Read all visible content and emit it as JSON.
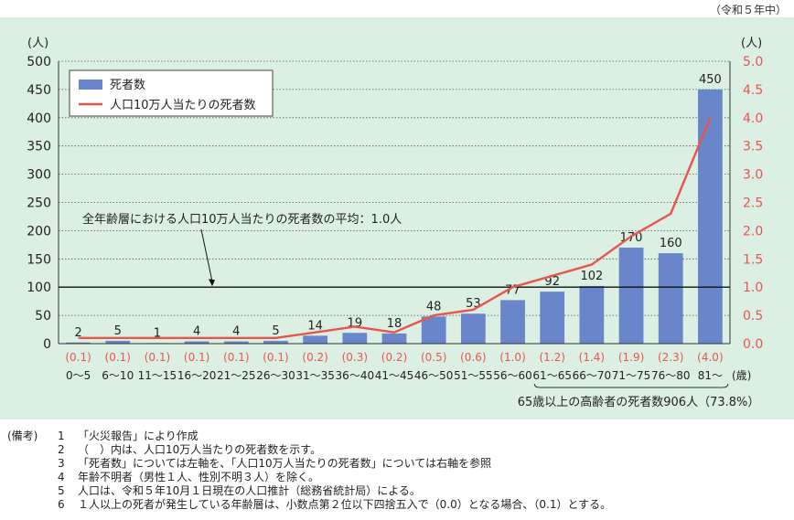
{
  "period_label": "（令和５年中）",
  "chart_data": {
    "type": "bar",
    "categories": [
      "0～5",
      "6～10",
      "11～15",
      "16～20",
      "21～25",
      "26～30",
      "31～35",
      "36～40",
      "41～45",
      "46～50",
      "51～55",
      "56～60",
      "61～65",
      "66～70",
      "71～75",
      "76～80",
      "81～"
    ],
    "x_unit_label": "(歳)",
    "series": [
      {
        "name": "死者数",
        "type": "bar",
        "axis": "left",
        "values": [
          2,
          5,
          1,
          4,
          4,
          5,
          14,
          19,
          18,
          48,
          53,
          77,
          92,
          102,
          170,
          160,
          450
        ],
        "color": "#6a86cb"
      },
      {
        "name": "人口10万人当たりの死者数",
        "type": "line",
        "axis": "right",
        "values": [
          0.1,
          0.1,
          0.1,
          0.1,
          0.1,
          0.1,
          0.2,
          0.3,
          0.2,
          0.5,
          0.6,
          1.0,
          1.2,
          1.4,
          1.9,
          2.3,
          4.0
        ],
        "labels": [
          "(0.1)",
          "(0.1)",
          "(0.1)",
          "(0.1)",
          "(0.1)",
          "(0.1)",
          "(0.2)",
          "(0.3)",
          "(0.2)",
          "(0.5)",
          "(0.6)",
          "(1.0)",
          "(1.2)",
          "(1.4)",
          "(1.9)",
          "(2.3)",
          "(4.0)"
        ],
        "color": "#e8554e"
      }
    ],
    "y_left": {
      "unit": "(人)",
      "min": 0,
      "max": 500,
      "ticks": [
        "0",
        "50",
        "100",
        "150",
        "200",
        "250",
        "300",
        "350",
        "400",
        "450",
        "500"
      ]
    },
    "y_right": {
      "unit": "(人)",
      "min": 0,
      "max": 5,
      "ticks": [
        "0.0",
        "0.5",
        "1.0",
        "1.5",
        "2.0",
        "2.5",
        "3.0",
        "3.5",
        "4.0",
        "4.5",
        "5.0"
      ]
    },
    "reference_line": {
      "value": 100,
      "label": "全年齢層における人口10万人当たりの死者数の平均：1.0人"
    },
    "bracket_label": "65歳以上の高齢者の死者数906人（73.8%）",
    "legend_position": "top-left",
    "grid": "dotted-horizontal"
  },
  "notes": {
    "heading": "(備考)",
    "items": [
      {
        "num": "1",
        "text": "「火災報告」により作成"
      },
      {
        "num": "2",
        "text": "（　）内は、人口10万人当たりの死者数を示す。"
      },
      {
        "num": "3",
        "text": "「死者数」については左軸を、「人口10万人当たりの死者数」については右軸を参照"
      },
      {
        "num": "4",
        "text": "年齢不明者（男性１人、性別不明３人）を除く。"
      },
      {
        "num": "5",
        "text": "人口は、令和５年10月１日現在の人口推計（総務省統計局）による。"
      },
      {
        "num": "6",
        "text": "１人以上の死者が発生している年齢層は、小数点第２位以下四捨五入で（0.0）となる場合、（0.1）とする。"
      }
    ]
  }
}
